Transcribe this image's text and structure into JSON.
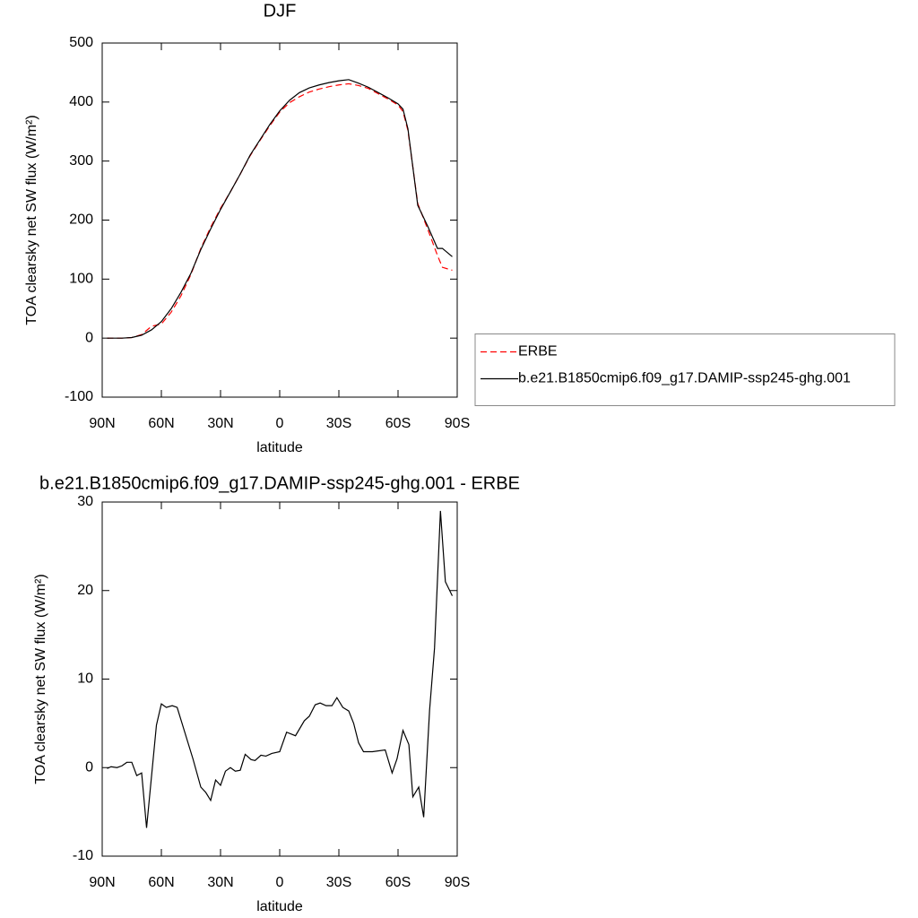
{
  "chart_data": [
    {
      "type": "line",
      "title": "DJF",
      "xlabel": "latitude",
      "ylabel": "TOA clearsky net SW flux (W/m²)",
      "x": [
        87.5,
        80,
        75,
        70,
        65,
        60,
        55,
        50,
        45,
        40,
        35,
        30,
        25,
        20,
        15,
        10,
        5,
        0,
        -5,
        -10,
        -15,
        -20,
        -25,
        -30,
        -35,
        -40,
        -45,
        -50,
        -55,
        -60,
        -62.5,
        -65,
        -67.5,
        -70,
        -75,
        -80,
        -82.5,
        -87.5
      ],
      "series": [
        {
          "name": "ERBE",
          "color": "#ff0000",
          "dashed": true,
          "values": [
            0,
            0,
            1,
            6,
            20,
            24,
            44,
            72,
            108,
            152,
            188,
            220,
            248,
            278,
            309,
            335,
            360,
            383,
            399,
            409,
            417,
            422,
            426,
            429,
            431,
            428,
            423,
            414,
            405,
            395,
            384,
            352,
            290,
            228,
            185,
            140,
            120,
            115
          ]
        },
        {
          "name": "b.e21.B1850cmip6.f09_g17.DAMIP-ssp245-ghg.001",
          "color": "#000000",
          "dashed": false,
          "values": [
            0,
            0,
            1,
            5,
            14,
            28,
            50,
            78,
            110,
            150,
            185,
            218,
            248,
            278,
            310,
            336,
            362,
            385,
            403,
            416,
            424,
            429,
            433,
            436,
            438,
            432,
            425,
            416,
            407,
            397,
            388,
            355,
            290,
            225,
            190,
            152,
            152,
            138
          ]
        }
      ],
      "xlim": [
        90,
        -90
      ],
      "xticks": [
        {
          "value": 90,
          "label": "90N"
        },
        {
          "value": 60,
          "label": "60N"
        },
        {
          "value": 30,
          "label": "30N"
        },
        0,
        {
          "value": -30,
          "label": "30S"
        },
        {
          "value": -60,
          "label": "60S"
        },
        {
          "value": -90,
          "label": "90S"
        }
      ],
      "ylim": [
        -100,
        500
      ],
      "yticks": [
        -100,
        0,
        100,
        200,
        300,
        400,
        500
      ],
      "legend": "right"
    },
    {
      "type": "line",
      "title": "b.e21.B1850cmip6.f09_g17.DAMIP-ssp245-ghg.001 - ERBE",
      "xlabel": "latitude",
      "ylabel": "TOA clearsky net SW flux (W/m²)",
      "x": [
        87.5,
        85.5,
        82.5,
        80,
        77.5,
        75,
        72.5,
        70,
        67.5,
        62.5,
        60,
        57.5,
        54.5,
        52,
        44,
        40,
        37.5,
        35,
        32.5,
        30,
        27.5,
        25,
        22.5,
        20,
        17.5,
        14.5,
        12.5,
        9.5,
        7,
        4,
        0,
        -3.5,
        -8,
        -12.5,
        -15,
        -18,
        -20.5,
        -23.5,
        -26.5,
        -29,
        -32,
        -35,
        -37.5,
        -40,
        -42.5,
        -47,
        -53.5,
        -57,
        -59.5,
        -62.5,
        -65.5,
        -67.5,
        -70.5,
        -73,
        -76,
        -78.5,
        -81.5,
        -84,
        -87.5
      ],
      "series": [
        {
          "name": "b.e21.B1850cmip6.f09_g17.DAMIP-ssp245-ghg.001 - ERBE",
          "color": "#000000",
          "dashed": false,
          "values": [
            -0.1,
            0.1,
            0,
            0.2,
            0.6,
            0.6,
            -0.9,
            -0.6,
            -6.8,
            4.8,
            7.2,
            6.8,
            7.0,
            6.8,
            1.0,
            -2.2,
            -2.8,
            -3.7,
            -1.4,
            -2.0,
            -0.4,
            0,
            -0.4,
            -0.3,
            1.5,
            0.9,
            0.8,
            1.4,
            1.3,
            1.6,
            1.8,
            4.0,
            3.6,
            5.3,
            5.8,
            7.1,
            7.3,
            7.0,
            7.0,
            7.9,
            6.8,
            6.4,
            5.0,
            2.8,
            1.8,
            1.8,
            2.0,
            -0.6,
            1.0,
            4.2,
            2.6,
            -3.3,
            -2.2,
            -5.6,
            6.5,
            13.5,
            29,
            21,
            19.4
          ]
        }
      ],
      "xlim": [
        90,
        -90
      ],
      "xticks": [
        {
          "value": 90,
          "label": "90N"
        },
        {
          "value": 60,
          "label": "60N"
        },
        {
          "value": 30,
          "label": "30N"
        },
        0,
        {
          "value": -30,
          "label": "30S"
        },
        {
          "value": -60,
          "label": "60S"
        },
        {
          "value": -90,
          "label": "90S"
        }
      ],
      "ylim": [
        -10,
        30
      ],
      "yticks": [
        -10,
        0,
        10,
        20,
        30
      ]
    }
  ]
}
